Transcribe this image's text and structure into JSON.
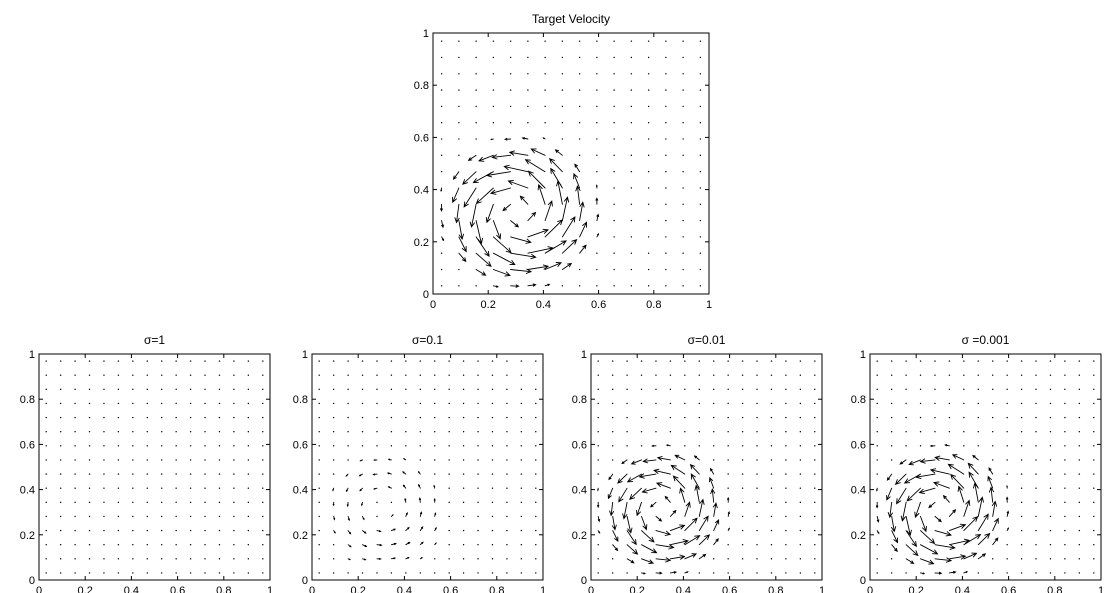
{
  "chart_data": [
    {
      "type": "quiver",
      "title": "Target Velocity",
      "xlim": [
        0,
        1
      ],
      "ylim": [
        0,
        1
      ],
      "xticks": [
        "0",
        "0.2",
        "0.4",
        "0.6",
        "0.8",
        "1"
      ],
      "yticks": [
        "0",
        "0.2",
        "0.4",
        "0.6",
        "0.8",
        "1"
      ],
      "grid": false,
      "field": {
        "vortex_center": [
          0.31,
          0.31
        ],
        "vortex_extent": 0.62,
        "peak_speed": 0.09,
        "background_speed": 0.004
      }
    },
    {
      "type": "quiver",
      "title": "σ=1",
      "xlim": [
        0,
        1
      ],
      "ylim": [
        0,
        1
      ],
      "xticks": [
        "0",
        "0.2",
        "0.4",
        "0.6",
        "0.8",
        "1"
      ],
      "yticks": [
        "0",
        "0.2",
        "0.4",
        "0.6",
        "0.8",
        "1"
      ],
      "grid": false,
      "field": {
        "vortex_center": [
          0.31,
          0.31
        ],
        "vortex_extent": 0.62,
        "peak_speed": 0.0,
        "background_speed": 0.004
      }
    },
    {
      "type": "quiver",
      "title": "σ=0.1",
      "xlim": [
        0,
        1
      ],
      "ylim": [
        0,
        1
      ],
      "xticks": [
        "0",
        "0.2",
        "0.4",
        "0.6",
        "0.8",
        "1"
      ],
      "yticks": [
        "0",
        "0.2",
        "0.4",
        "0.6",
        "0.8",
        "1"
      ],
      "grid": false,
      "field": {
        "vortex_center": [
          0.31,
          0.31
        ],
        "vortex_extent": 0.62,
        "peak_speed": 0.018,
        "background_speed": 0.003
      }
    },
    {
      "type": "quiver",
      "title": "σ=0.01",
      "xlim": [
        0,
        1
      ],
      "ylim": [
        0,
        1
      ],
      "xticks": [
        "0",
        "0.2",
        "0.4",
        "0.6",
        "0.8",
        "1"
      ],
      "yticks": [
        "0",
        "0.2",
        "0.4",
        "0.6",
        "0.8",
        "1"
      ],
      "grid": false,
      "field": {
        "vortex_center": [
          0.31,
          0.31
        ],
        "vortex_extent": 0.62,
        "peak_speed": 0.075,
        "background_speed": 0.004
      }
    },
    {
      "type": "quiver",
      "title": "σ =0.001",
      "xlim": [
        0,
        1
      ],
      "ylim": [
        0,
        1
      ],
      "xticks": [
        "0",
        "0.2",
        "0.4",
        "0.6",
        "0.8",
        "1"
      ],
      "yticks": [
        "0",
        "0.2",
        "0.4",
        "0.6",
        "0.8",
        "1"
      ],
      "grid": false,
      "field": {
        "vortex_center": [
          0.31,
          0.31
        ],
        "vortex_extent": 0.62,
        "peak_speed": 0.085,
        "background_speed": 0.004
      }
    }
  ]
}
